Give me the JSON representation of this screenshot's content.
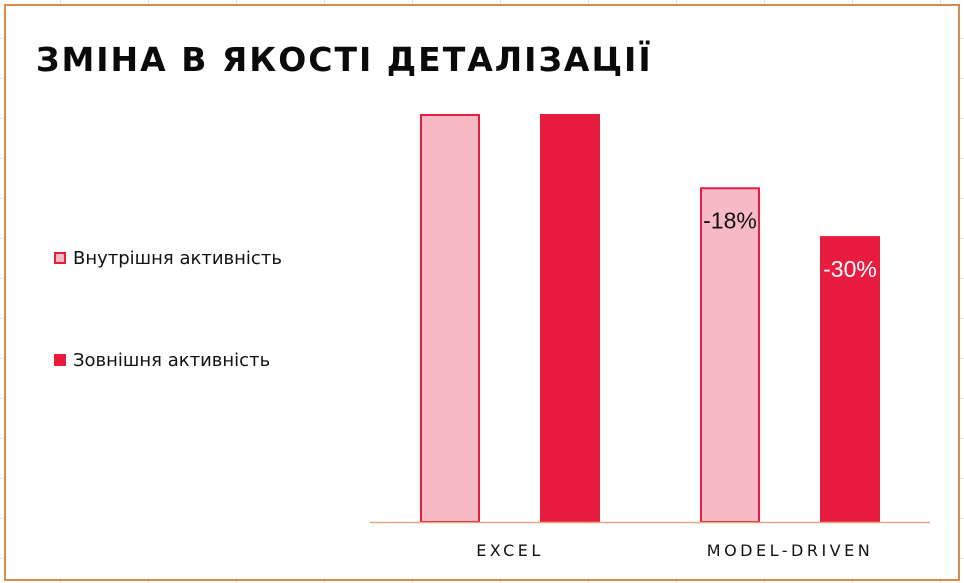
{
  "chart_data": {
    "type": "bar",
    "title": "ЗМІНА В ЯКОСТІ ДЕТАЛІЗАЦІЇ",
    "categories": [
      "EXCEL",
      "MODEL-DRIVEN"
    ],
    "series": [
      {
        "name": "Внутрішня активність",
        "values": [
          100,
          82
        ],
        "data_labels": [
          "",
          "-18%"
        ],
        "fill": "#f7b9c4",
        "stroke": "#e81c3e",
        "label_color": "#111111",
        "legend_fill": "#f7b9c4",
        "legend_stroke": "#e81c3e"
      },
      {
        "name": "Зовнішня активність",
        "values": [
          100,
          70
        ],
        "data_labels": [
          "",
          "-30%"
        ],
        "fill": "#e81c3e",
        "stroke": "#e81c3e",
        "label_color": "#ffffff",
        "legend_fill": "#e81c3e",
        "legend_stroke": "#e81c3e"
      }
    ],
    "ylim": [
      0,
      100
    ],
    "xlabel": "",
    "ylabel": "",
    "grid": false,
    "legend_position": "left",
    "axis_color": "#e8a77f",
    "frame_color": "#d9894a"
  }
}
